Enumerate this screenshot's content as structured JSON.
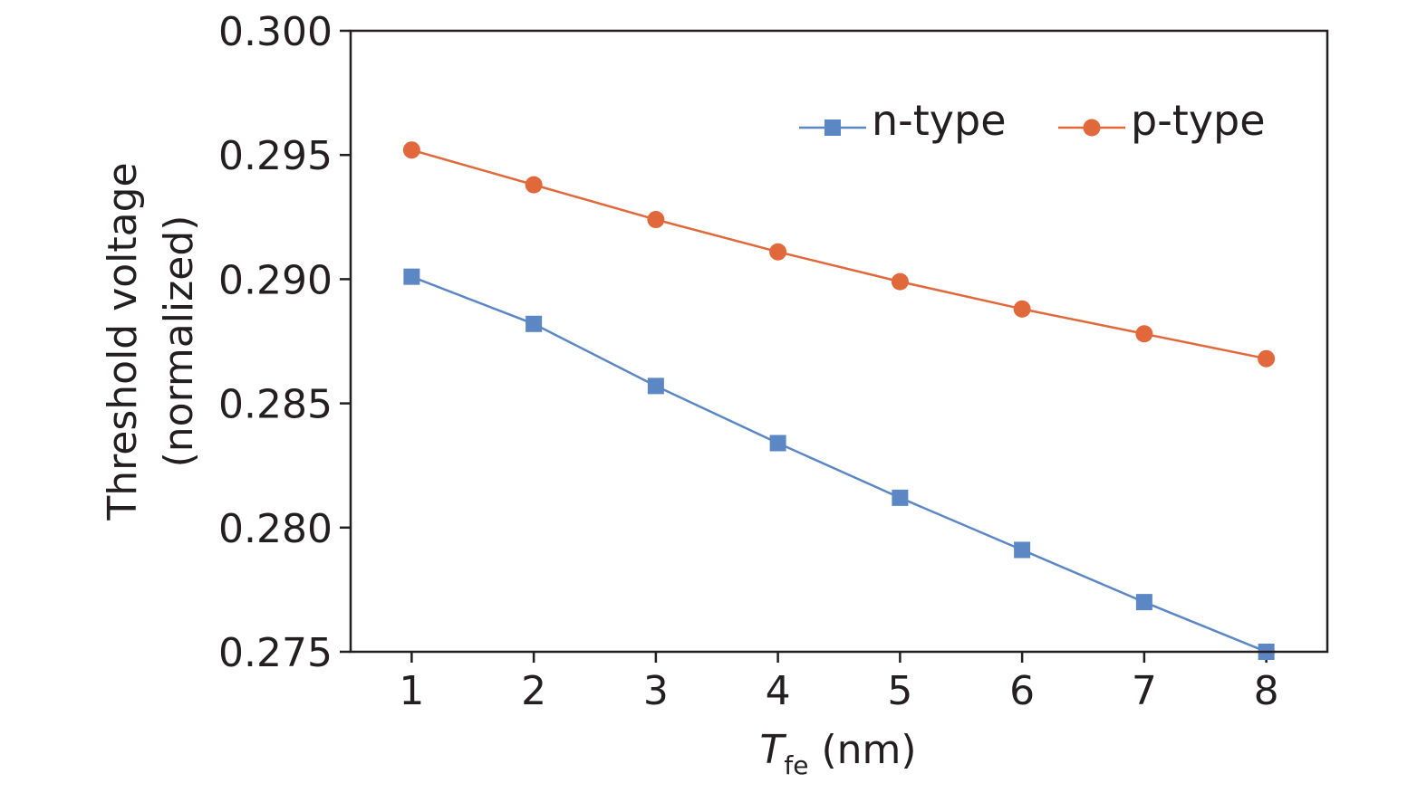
{
  "chart_data": {
    "type": "line",
    "x": [
      1,
      2,
      3,
      4,
      5,
      6,
      7,
      8
    ],
    "series": [
      {
        "name": "n-type",
        "color": "#5b87c5",
        "marker": "square",
        "values": [
          0.2901,
          0.2882,
          0.2857,
          0.2834,
          0.2812,
          0.2791,
          0.277,
          0.275
        ]
      },
      {
        "name": "p-type",
        "color": "#e0683a",
        "marker": "circle",
        "values": [
          0.2952,
          0.2938,
          0.2924,
          0.2911,
          0.2899,
          0.2888,
          0.2878,
          0.2868
        ]
      }
    ],
    "xlabel": {
      "main": "T",
      "sub": "fe",
      "unit": " (nm)"
    },
    "ylabel": [
      "Threshold voltage",
      "(normalized)"
    ],
    "xticks": [
      "1",
      "2",
      "3",
      "4",
      "5",
      "6",
      "7",
      "8"
    ],
    "yticks": [
      "0.275",
      "0.280",
      "0.285",
      "0.290",
      "0.295",
      "0.300"
    ],
    "ylim": [
      0.275,
      0.3
    ],
    "xlim": [
      0.5,
      8.5
    ],
    "grid": false,
    "legend": "top-right"
  }
}
